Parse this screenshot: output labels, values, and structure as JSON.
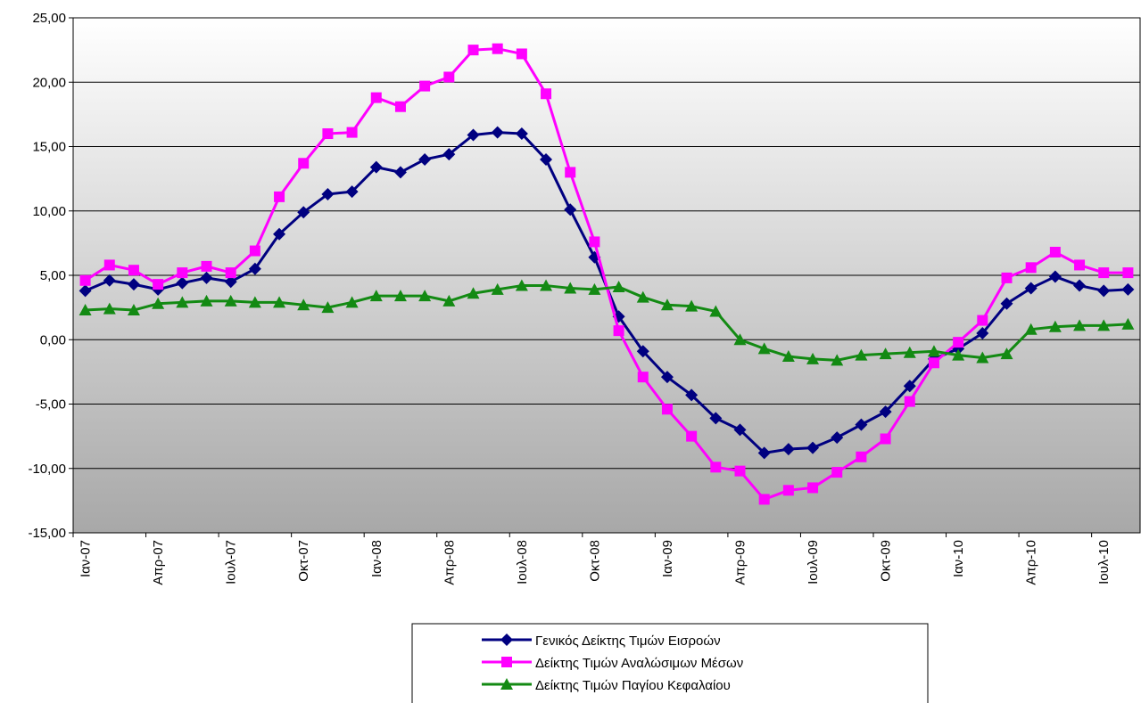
{
  "chart_data": {
    "type": "line",
    "categories": [
      "Ιαν-07",
      null,
      null,
      "Απρ-07",
      null,
      null,
      "Ιουλ-07",
      null,
      null,
      "Οκτ-07",
      null,
      null,
      "Ιαν-08",
      null,
      null,
      "Απρ-08",
      null,
      null,
      "Ιουλ-08",
      null,
      null,
      "Οκτ-08",
      null,
      null,
      "Ιαν-09",
      null,
      null,
      "Απρ-09",
      null,
      null,
      "Ιουλ-09",
      null,
      null,
      "Οκτ-09",
      null,
      null,
      "Ιαν-10",
      null,
      null,
      "Απρ-10",
      null,
      null,
      "Ιουλ-10",
      null
    ],
    "series": [
      {
        "name": "Γενικός Δείκτης Τιμών Εισροών",
        "color": "#000080",
        "marker": "diamond",
        "values": [
          3.8,
          4.6,
          4.3,
          3.9,
          4.4,
          4.8,
          4.5,
          5.5,
          8.2,
          9.9,
          11.3,
          11.5,
          13.4,
          13.0,
          14.0,
          14.4,
          15.9,
          16.1,
          16.0,
          14.0,
          10.1,
          6.4,
          1.8,
          -0.9,
          -2.9,
          -4.3,
          -6.1,
          -7.0,
          -8.8,
          -8.5,
          -8.4,
          -7.6,
          -6.6,
          -5.6,
          -3.6,
          -1.5,
          -0.7,
          0.5,
          2.8,
          4.0,
          4.9,
          4.2,
          3.8,
          3.9
        ]
      },
      {
        "name": "Δείκτης Τιμών Αναλώσιμων Μέσων",
        "color": "#ff00ff",
        "marker": "square",
        "values": [
          4.6,
          5.8,
          5.4,
          4.3,
          5.2,
          5.7,
          5.2,
          6.9,
          11.1,
          13.7,
          16.0,
          16.1,
          18.8,
          18.1,
          19.7,
          20.4,
          22.5,
          22.6,
          22.2,
          19.1,
          13.0,
          7.6,
          0.7,
          -2.9,
          -5.4,
          -7.5,
          -9.9,
          -10.2,
          -12.4,
          -11.7,
          -11.5,
          -10.3,
          -9.1,
          -7.7,
          -4.8,
          -1.8,
          -0.2,
          1.5,
          4.8,
          5.6,
          6.8,
          5.8,
          5.2,
          5.2
        ]
      },
      {
        "name": "Δείκτης Τιμών Παγίου Κεφαλαίου",
        "color": "#138a13",
        "marker": "triangle",
        "values": [
          2.3,
          2.4,
          2.3,
          2.8,
          2.9,
          3.0,
          3.0,
          2.9,
          2.9,
          2.7,
          2.5,
          2.9,
          3.4,
          3.4,
          3.4,
          3.0,
          3.6,
          3.9,
          4.2,
          4.2,
          4.0,
          3.9,
          4.1,
          3.3,
          2.7,
          2.6,
          2.2,
          0.0,
          -0.7,
          -1.3,
          -1.5,
          -1.6,
          -1.2,
          -1.1,
          -1.0,
          -0.9,
          -1.2,
          -1.4,
          -1.1,
          0.8,
          1.0,
          1.1,
          1.1,
          1.2
        ]
      }
    ],
    "ylim": [
      -15,
      25
    ],
    "yticks": [
      {
        "value": -15,
        "label": "-15,00"
      },
      {
        "value": -10,
        "label": "-10,00"
      },
      {
        "value": -5,
        "label": "-5,00"
      },
      {
        "value": 0,
        "label": "0,00"
      },
      {
        "value": 5,
        "label": "5,00"
      },
      {
        "value": 10,
        "label": "10,00"
      },
      {
        "value": 15,
        "label": "15,00"
      },
      {
        "value": 20,
        "label": "20,00"
      },
      {
        "value": 25,
        "label": "25,00"
      }
    ],
    "grid": true,
    "legend": "bottom"
  }
}
